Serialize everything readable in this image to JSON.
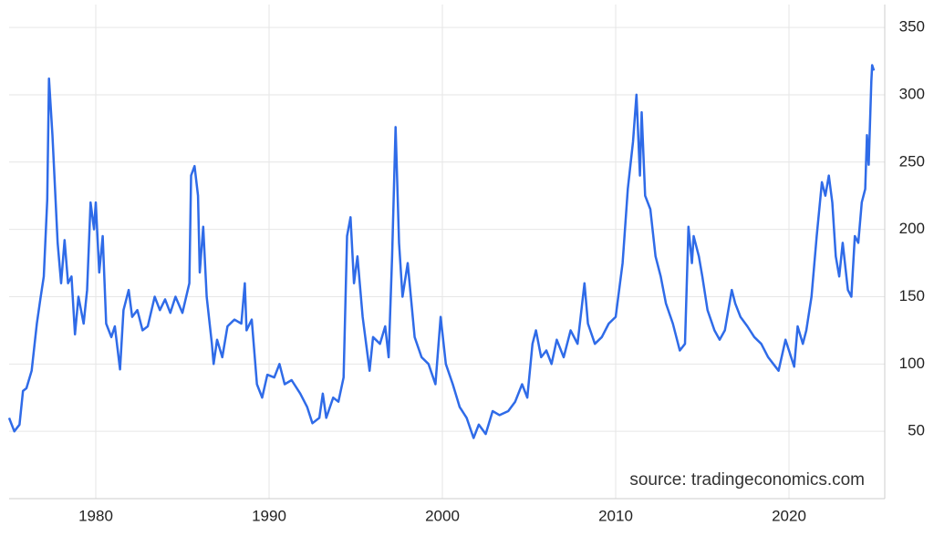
{
  "chart_data": {
    "type": "line",
    "source": "source: tradingeconomics.com",
    "x": [
      1975.0,
      1975.3,
      1975.6,
      1975.8,
      1976.0,
      1976.3,
      1976.6,
      1976.8,
      1977.0,
      1977.2,
      1977.3,
      1977.5,
      1977.8,
      1978.0,
      1978.2,
      1978.4,
      1978.6,
      1978.8,
      1979.0,
      1979.3,
      1979.5,
      1979.7,
      1979.9,
      1980.0,
      1980.2,
      1980.4,
      1980.6,
      1980.9,
      1981.1,
      1981.4,
      1981.6,
      1981.9,
      1982.1,
      1982.4,
      1982.7,
      1983.0,
      1983.4,
      1983.7,
      1984.0,
      1984.3,
      1984.6,
      1985.0,
      1985.4,
      1985.5,
      1985.7,
      1985.9,
      1986.0,
      1986.2,
      1986.4,
      1986.7,
      1986.8,
      1987.0,
      1987.3,
      1987.6,
      1988.0,
      1988.4,
      1988.6,
      1988.7,
      1989.0,
      1989.3,
      1989.6,
      1989.9,
      1990.3,
      1990.6,
      1990.9,
      1991.3,
      1991.8,
      1992.2,
      1992.5,
      1992.9,
      1993.1,
      1993.3,
      1993.7,
      1994.0,
      1994.3,
      1994.5,
      1994.7,
      1994.9,
      1995.1,
      1995.4,
      1995.8,
      1996.0,
      1996.4,
      1996.7,
      1996.9,
      1997.1,
      1997.3,
      1997.5,
      1997.7,
      1998.0,
      1998.4,
      1998.8,
      1999.2,
      1999.6,
      1999.9,
      2000.2,
      2000.6,
      2001.0,
      2001.4,
      2001.8,
      2002.1,
      2002.5,
      2002.9,
      2003.3,
      2003.8,
      2004.2,
      2004.6,
      2004.9,
      2005.2,
      2005.4,
      2005.7,
      2006.0,
      2006.3,
      2006.6,
      2007.0,
      2007.4,
      2007.8,
      2008.2,
      2008.4,
      2008.8,
      2009.2,
      2009.6,
      2010.0,
      2010.4,
      2010.7,
      2011.0,
      2011.2,
      2011.4,
      2011.5,
      2011.7,
      2012.0,
      2012.3,
      2012.6,
      2012.9,
      2013.3,
      2013.7,
      2014.0,
      2014.2,
      2014.4,
      2014.5,
      2014.8,
      2015.0,
      2015.3,
      2015.7,
      2016.0,
      2016.3,
      2016.7,
      2016.9,
      2017.2,
      2017.6,
      2018.0,
      2018.4,
      2018.8,
      2019.1,
      2019.4,
      2019.8,
      2020.0,
      2020.3,
      2020.5,
      2020.8,
      2021.0,
      2021.3,
      2021.6,
      2021.9,
      2022.1,
      2022.3,
      2022.5,
      2022.7,
      2022.9,
      2023.1,
      2023.4,
      2023.6,
      2023.8,
      2024.0,
      2024.2,
      2024.4,
      2024.5,
      2024.6,
      2024.75,
      2024.8,
      2024.9
    ],
    "values": [
      60,
      50,
      55,
      80,
      82,
      95,
      130,
      148,
      165,
      222,
      312,
      270,
      190,
      160,
      192,
      160,
      165,
      122,
      150,
      130,
      155,
      220,
      200,
      220,
      168,
      195,
      130,
      120,
      128,
      96,
      140,
      155,
      135,
      140,
      125,
      128,
      150,
      140,
      148,
      138,
      150,
      138,
      160,
      240,
      247,
      225,
      168,
      202,
      150,
      115,
      100,
      118,
      105,
      128,
      133,
      130,
      160,
      125,
      133,
      85,
      75,
      92,
      90,
      100,
      85,
      88,
      78,
      68,
      56,
      60,
      78,
      60,
      75,
      72,
      90,
      195,
      209,
      160,
      180,
      135,
      95,
      120,
      115,
      128,
      105,
      180,
      276,
      190,
      150,
      175,
      120,
      105,
      100,
      85,
      135,
      100,
      85,
      68,
      60,
      45,
      55,
      48,
      65,
      62,
      65,
      72,
      85,
      75,
      115,
      125,
      105,
      110,
      100,
      118,
      105,
      125,
      115,
      160,
      130,
      115,
      120,
      130,
      135,
      175,
      230,
      265,
      300,
      240,
      287,
      225,
      215,
      180,
      165,
      145,
      130,
      110,
      115,
      202,
      175,
      195,
      180,
      165,
      140,
      125,
      118,
      125,
      155,
      145,
      135,
      128,
      120,
      115,
      105,
      100,
      95,
      118,
      110,
      98,
      128,
      115,
      125,
      150,
      195,
      235,
      225,
      240,
      220,
      180,
      165,
      190,
      155,
      150,
      195,
      190,
      220,
      230,
      270,
      248,
      310,
      322,
      318
    ],
    "color": "#2f6be8",
    "xlim": [
      1975,
      2025
    ],
    "ylim": [
      0,
      367
    ],
    "xticks": [
      1980,
      1990,
      2000,
      2010,
      2020
    ],
    "yticks": [
      50,
      100,
      150,
      200,
      250,
      300,
      350
    ],
    "grid": true
  }
}
